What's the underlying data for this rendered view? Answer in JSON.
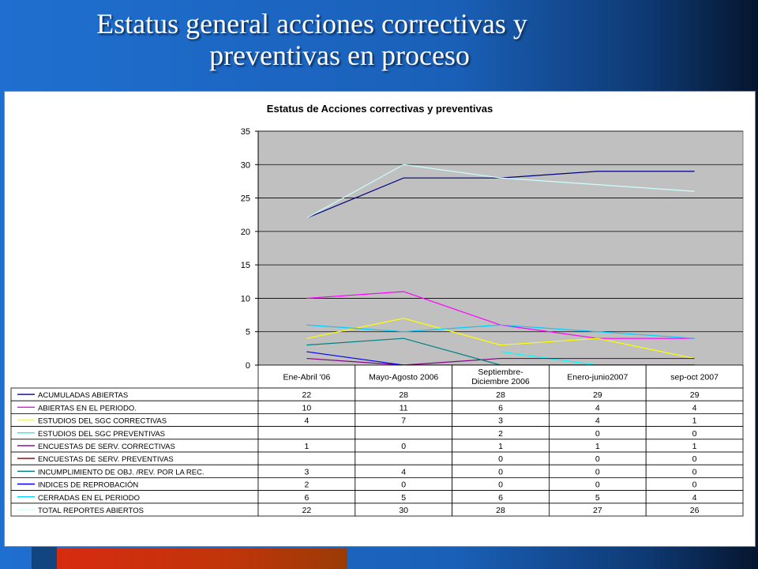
{
  "slide": {
    "title_line1": "Estatus general acciones correctivas y",
    "title_line2": "preventivas en proceso"
  },
  "colors": {
    "background": "#1a60b8",
    "plot_area": "#c0c0c0",
    "accent_bar": "#d72b10"
  },
  "chart_data": {
    "type": "line",
    "title": "Estatus de Acciones  correctivas y preventivas",
    "categories": [
      "Ene-Abril '06",
      "Mayo-Agosto 2006",
      "Septiembre-\nDiciembre 2006",
      "Enero-junio2007",
      "sep-oct 2007"
    ],
    "ylim": [
      0,
      35
    ],
    "yticks": [
      0,
      5,
      10,
      15,
      20,
      25,
      30,
      35
    ],
    "grid": true,
    "series": [
      {
        "name": "ACUMULADAS ABIERTAS",
        "color": "#000080",
        "values": [
          22,
          28,
          28,
          29,
          29
        ]
      },
      {
        "name": " ABIERTAS EN EL PERIODO.",
        "color": "#ff00ff",
        "values": [
          10,
          11,
          6,
          4,
          4
        ]
      },
      {
        "name": "ESTUDIOS DEL SGC CORRECTIVAS",
        "color": "#ffff00",
        "values": [
          4,
          7,
          3,
          4,
          1
        ]
      },
      {
        "name": "ESTUDIOS DEL SGC PREVENTIVAS",
        "color": "#00ffff",
        "values": [
          null,
          null,
          2,
          0,
          0
        ]
      },
      {
        "name": "ENCUESTAS DE SERV.  CORRECTIVAS",
        "color": "#800080",
        "values": [
          1,
          0,
          1,
          1,
          1
        ]
      },
      {
        "name": "ENCUESTAS DE SERV.  PREVENTIVAS",
        "color": "#800000",
        "values": [
          null,
          null,
          0,
          0,
          0
        ]
      },
      {
        "name": "INCUMPLIMIENTO DE OBJ. /REV. POR LA REC.",
        "color": "#008080",
        "values": [
          3,
          4,
          0,
          0,
          0
        ]
      },
      {
        "name": "INDICES DE REPROBACIÓN",
        "color": "#0000ff",
        "values": [
          2,
          0,
          0,
          0,
          0
        ]
      },
      {
        "name": "CERRADAS EN EL PERIODO",
        "color": "#00ccff",
        "values": [
          6,
          5,
          6,
          5,
          4
        ]
      },
      {
        "name": "TOTAL REPORTES ABIERTOS",
        "color": "#ccffff",
        "values": [
          22,
          30,
          28,
          27,
          26
        ]
      }
    ]
  }
}
